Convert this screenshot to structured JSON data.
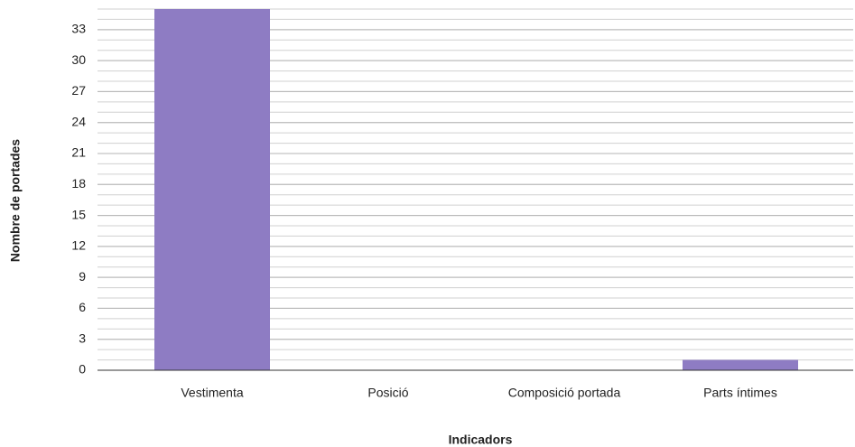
{
  "chart_data": {
    "type": "bar",
    "categories": [
      "Vestimenta",
      "Posició",
      "Composició portada",
      "Parts íntimes"
    ],
    "values": [
      35,
      0,
      0,
      1
    ],
    "color": "#8e7cc3",
    "x_label": "Indicadors",
    "y_label": "Nombre de portades",
    "ylim": [
      0,
      35
    ],
    "yticks": [
      0,
      3,
      6,
      9,
      12,
      15,
      18,
      21,
      24,
      27,
      30,
      33
    ],
    "grid": true,
    "minor_grid_step": 1
  }
}
